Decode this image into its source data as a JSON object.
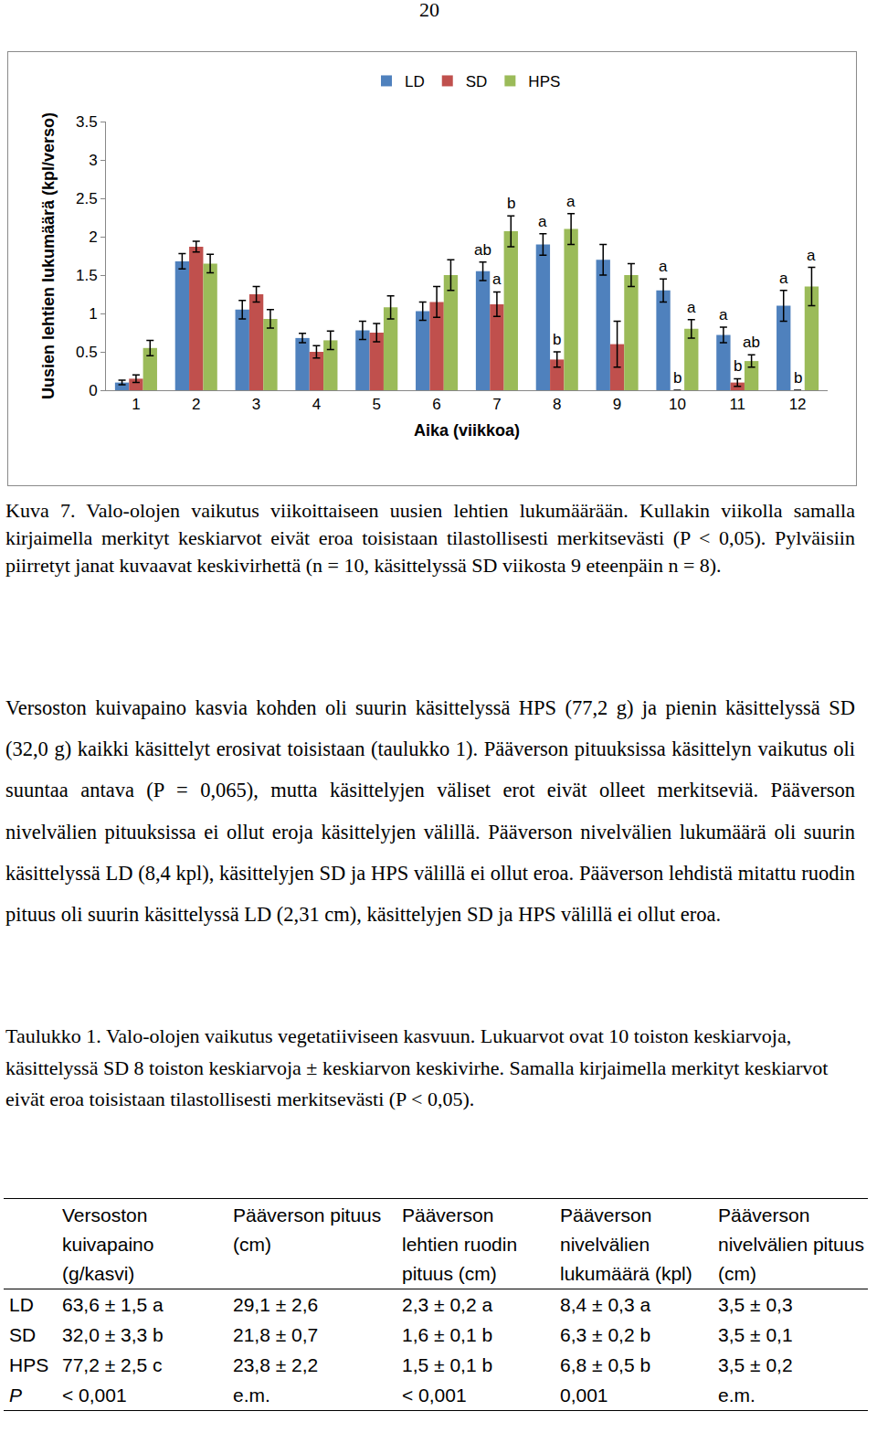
{
  "page_number": "20",
  "chart_data": {
    "type": "bar",
    "categories": [
      "1",
      "2",
      "3",
      "4",
      "5",
      "6",
      "7",
      "8",
      "9",
      "10",
      "11",
      "12"
    ],
    "x_label": "Aika (viikkoa)",
    "y_label": "Uusien lehtien lukumäärä (kpl/verso)",
    "ylim": [
      0,
      3.5
    ],
    "yticks": [
      0,
      0.5,
      1,
      1.5,
      2,
      2.5,
      3,
      3.5
    ],
    "grid": false,
    "legend": "top",
    "series": [
      {
        "name": "LD",
        "color": "#4f81bd",
        "values": [
          0.1,
          1.68,
          1.05,
          0.68,
          0.78,
          1.03,
          1.55,
          1.9,
          1.7,
          1.3,
          0.72,
          1.1
        ],
        "errors": [
          0.03,
          0.1,
          0.12,
          0.06,
          0.12,
          0.12,
          0.12,
          0.14,
          0.2,
          0.15,
          0.1,
          0.2
        ],
        "letters": [
          null,
          null,
          null,
          null,
          null,
          null,
          "ab",
          "a",
          null,
          "a",
          "a",
          "a"
        ]
      },
      {
        "name": "SD",
        "color": "#c0504d",
        "values": [
          0.15,
          1.87,
          1.25,
          0.5,
          0.75,
          1.15,
          1.12,
          0.4,
          0.6,
          0,
          0.1,
          0
        ],
        "errors": [
          0.05,
          0.07,
          0.1,
          0.08,
          0.12,
          0.2,
          0.16,
          0.1,
          0.3,
          0,
          0.05,
          0
        ],
        "letters": [
          null,
          null,
          null,
          null,
          null,
          null,
          "a",
          "b",
          null,
          "b",
          "b",
          "b"
        ]
      },
      {
        "name": "HPS",
        "color": "#9bbb59",
        "values": [
          0.55,
          1.65,
          0.93,
          0.65,
          1.08,
          1.5,
          2.07,
          2.1,
          1.5,
          0.8,
          0.38,
          1.35
        ],
        "errors": [
          0.1,
          0.12,
          0.12,
          0.12,
          0.15,
          0.2,
          0.2,
          0.2,
          0.15,
          0.12,
          0.08,
          0.25
        ],
        "letters": [
          null,
          null,
          null,
          null,
          null,
          null,
          "b",
          "a",
          null,
          "a",
          "ab",
          "a"
        ]
      }
    ]
  },
  "figure_caption": "Kuva 7. Valo-olojen vaikutus viikoittaiseen uusien lehtien lukumäärään. Kullakin viikolla samalla kirjaimella merkityt keskiarvot eivät eroa toisistaan tilastollisesti merkitsevästi (P < 0,05). Pylväisiin piirretyt janat kuvaavat keskivirhettä (n = 10, käsittelyssä SD viikosta 9 eteenpäin n = 8).",
  "body_text": "Versoston kuivapaino kasvia kohden oli suurin käsittelyssä HPS (77,2 g) ja pienin käsittelyssä SD (32,0 g) kaikki käsittelyt erosivat toisistaan (taulukko 1). Pääverson pituuksissa käsittelyn vaikutus oli suuntaa antava (P = 0,065), mutta käsittelyjen väliset erot eivät olleet merkitseviä. Pääverson nivelvälien pituuksissa ei ollut eroja käsittelyjen välillä. Pääverson nivelvälien lukumäärä oli suurin käsittelyssä LD (8,4 kpl), käsittelyjen SD ja HPS välillä ei ollut eroa. Pääverson lehdistä mitattu ruodin pituus oli suurin käsittelyssä LD (2,31 cm), käsittelyjen SD ja HPS välillä ei ollut eroa.",
  "table_caption": "Taulukko 1. Valo-olojen vaikutus vegetatiiviseen kasvuun. Lukuarvot ovat 10 toiston keskiarvoja, käsittelyssä SD 8 toiston keskiarvoja ± keskiarvon keskivirhe. Samalla kirjaimella merkityt keskiarvot eivät eroa toisistaan tilastollisesti merkitsevästi (P < 0,05).",
  "table": {
    "header": [
      null,
      "Versoston kuivapaino (g/kasvi)",
      "Pääverson pituus (cm)",
      "Pääverson lehtien ruodin pituus (cm)",
      "Pääverson nivelvälien lukumäärä (kpl)",
      "Pääverson nivelvälien pituus (cm)"
    ],
    "rows": [
      [
        "LD",
        "63,6 ± 1,5 a",
        "29,1 ± 2,6",
        "2,3 ± 0,2 a",
        "8,4 ± 0,3 a",
        "3,5 ± 0,3"
      ],
      [
        "SD",
        "32,0 ± 3,3 b",
        "21,8 ± 0,7",
        "1,6 ± 0,1 b",
        "6,3 ± 0,2 b",
        "3,5 ± 0,1"
      ],
      [
        "HPS",
        "77,2 ± 2,5 c",
        "23,8 ± 2,2",
        "1,5 ± 0,1 b",
        "6,8 ± 0,5 b",
        "3,5 ± 0,2"
      ],
      [
        "P",
        "< 0,001",
        "e.m.",
        "< 0,001",
        "0,001",
        "e.m."
      ]
    ]
  }
}
